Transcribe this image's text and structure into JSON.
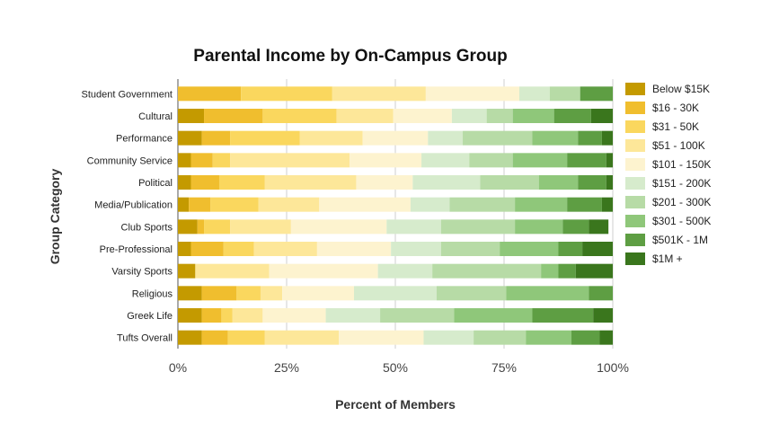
{
  "chart_data": {
    "type": "bar",
    "orientation": "horizontal",
    "stacked": true,
    "title": "Parental Income by On-Campus Group",
    "xlabel": "Percent of Members",
    "ylabel": "Group Category",
    "xlim": [
      0,
      100
    ],
    "xticks": [
      "0%",
      "25%",
      "50%",
      "75%",
      "100%"
    ],
    "grid": true,
    "legend_position": "right",
    "categories": [
      "Student Government",
      "Cultural",
      "Performance",
      "Community Service",
      "Political",
      "Media/Publication",
      "Club Sports",
      "Pre-Professional",
      "Varsity Sports",
      "Religious",
      "Greek Life",
      "Tufts Overall"
    ],
    "series": [
      {
        "name": "Below $15K",
        "color": "#c49a00",
        "values": [
          0,
          6,
          5.5,
          3,
          3,
          2.5,
          4.5,
          3,
          4,
          5.5,
          5.5,
          5.5
        ]
      },
      {
        "name": "$16 - 30K",
        "color": "#f0be2e",
        "values": [
          14.5,
          13.5,
          6.5,
          5,
          6.5,
          5,
          1.5,
          7.5,
          0,
          8,
          4.5,
          6
        ]
      },
      {
        "name": "$31 - 50K",
        "color": "#fad75e",
        "values": [
          21,
          17,
          16,
          4,
          10.5,
          11,
          6,
          7,
          0,
          5.5,
          2.5,
          8.5
        ]
      },
      {
        "name": "$51 - 100K",
        "color": "#fde799",
        "values": [
          21.5,
          13,
          14.5,
          27.5,
          21,
          14,
          14,
          14.5,
          17,
          5,
          7,
          17
        ]
      },
      {
        "name": "$101 - 150K",
        "color": "#fdf3cf",
        "values": [
          21.5,
          13.5,
          15,
          16.5,
          13,
          21,
          22,
          17,
          25,
          16.5,
          14.5,
          19.5
        ]
      },
      {
        "name": "$151 - 200K",
        "color": "#d6ebcc",
        "values": [
          7,
          8,
          8,
          11,
          15.5,
          9,
          12.5,
          11.5,
          12.5,
          19,
          12.5,
          11.5
        ]
      },
      {
        "name": "$201 - 300K",
        "color": "#b7dba6",
        "values": [
          7,
          6,
          16,
          10,
          13.5,
          15,
          17,
          13.5,
          25,
          16,
          17,
          12
        ]
      },
      {
        "name": "$301 - 500K",
        "color": "#8fc77a",
        "values": [
          0,
          9.5,
          10.5,
          12.5,
          9,
          12,
          11,
          13.5,
          4,
          19,
          18,
          10.5
        ]
      },
      {
        "name": "$501K - 1M",
        "color": "#5e9e43",
        "values": [
          7.5,
          8.5,
          5.5,
          9,
          6.5,
          8,
          6,
          5.5,
          4,
          5.5,
          14,
          6.5
        ]
      },
      {
        "name": "$1M +",
        "color": "#3a761d",
        "values": [
          0,
          5,
          2.5,
          1.5,
          1.5,
          2.5,
          4.5,
          7,
          8.5,
          0,
          4.5,
          3
        ]
      }
    ]
  }
}
